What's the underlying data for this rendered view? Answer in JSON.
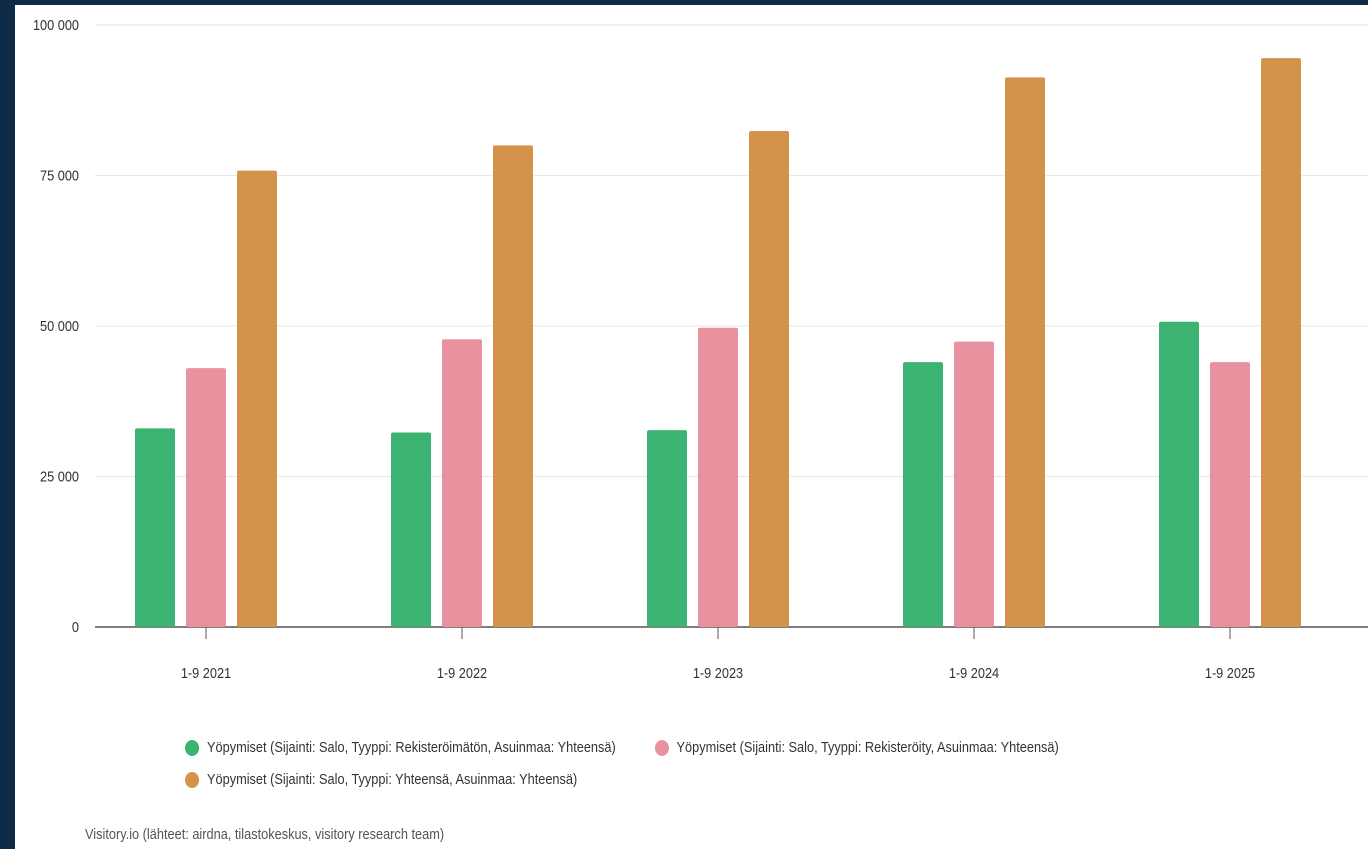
{
  "chart_data": {
    "type": "bar",
    "categories": [
      "1-9 2021",
      "1-9 2022",
      "1-9 2023",
      "1-9 2024",
      "1-9 2025"
    ],
    "series": [
      {
        "name": "Yöpymiset (Sijainti: Salo, Tyyppi: Rekisteröimätön, Asuinmaa: Yhteensä)",
        "color": "#3cb371",
        "values": [
          33000,
          32300,
          32700,
          44000,
          50700
        ]
      },
      {
        "name": "Yöpymiset (Sijainti: Salo, Tyyppi: Rekisteröity, Asuinmaa: Yhteensä)",
        "color": "#e8919f",
        "values": [
          43000,
          47800,
          49700,
          47400,
          44000
        ]
      },
      {
        "name": "Yöpymiset (Sijainti: Salo, Tyyppi: Yhteensä, Asuinmaa: Yhteensä)",
        "color": "#d4924b",
        "values": [
          75800,
          80000,
          82400,
          91300,
          94500
        ]
      }
    ],
    "yticks": [
      "0",
      "25 000",
      "50 000",
      "75 000",
      "100 000"
    ],
    "ylim": [
      0,
      100000
    ],
    "grid": true,
    "legend_position": "bottom",
    "source": "Visitory.io (lähteet: airdna, tilastokeskus, visitory research team)"
  }
}
